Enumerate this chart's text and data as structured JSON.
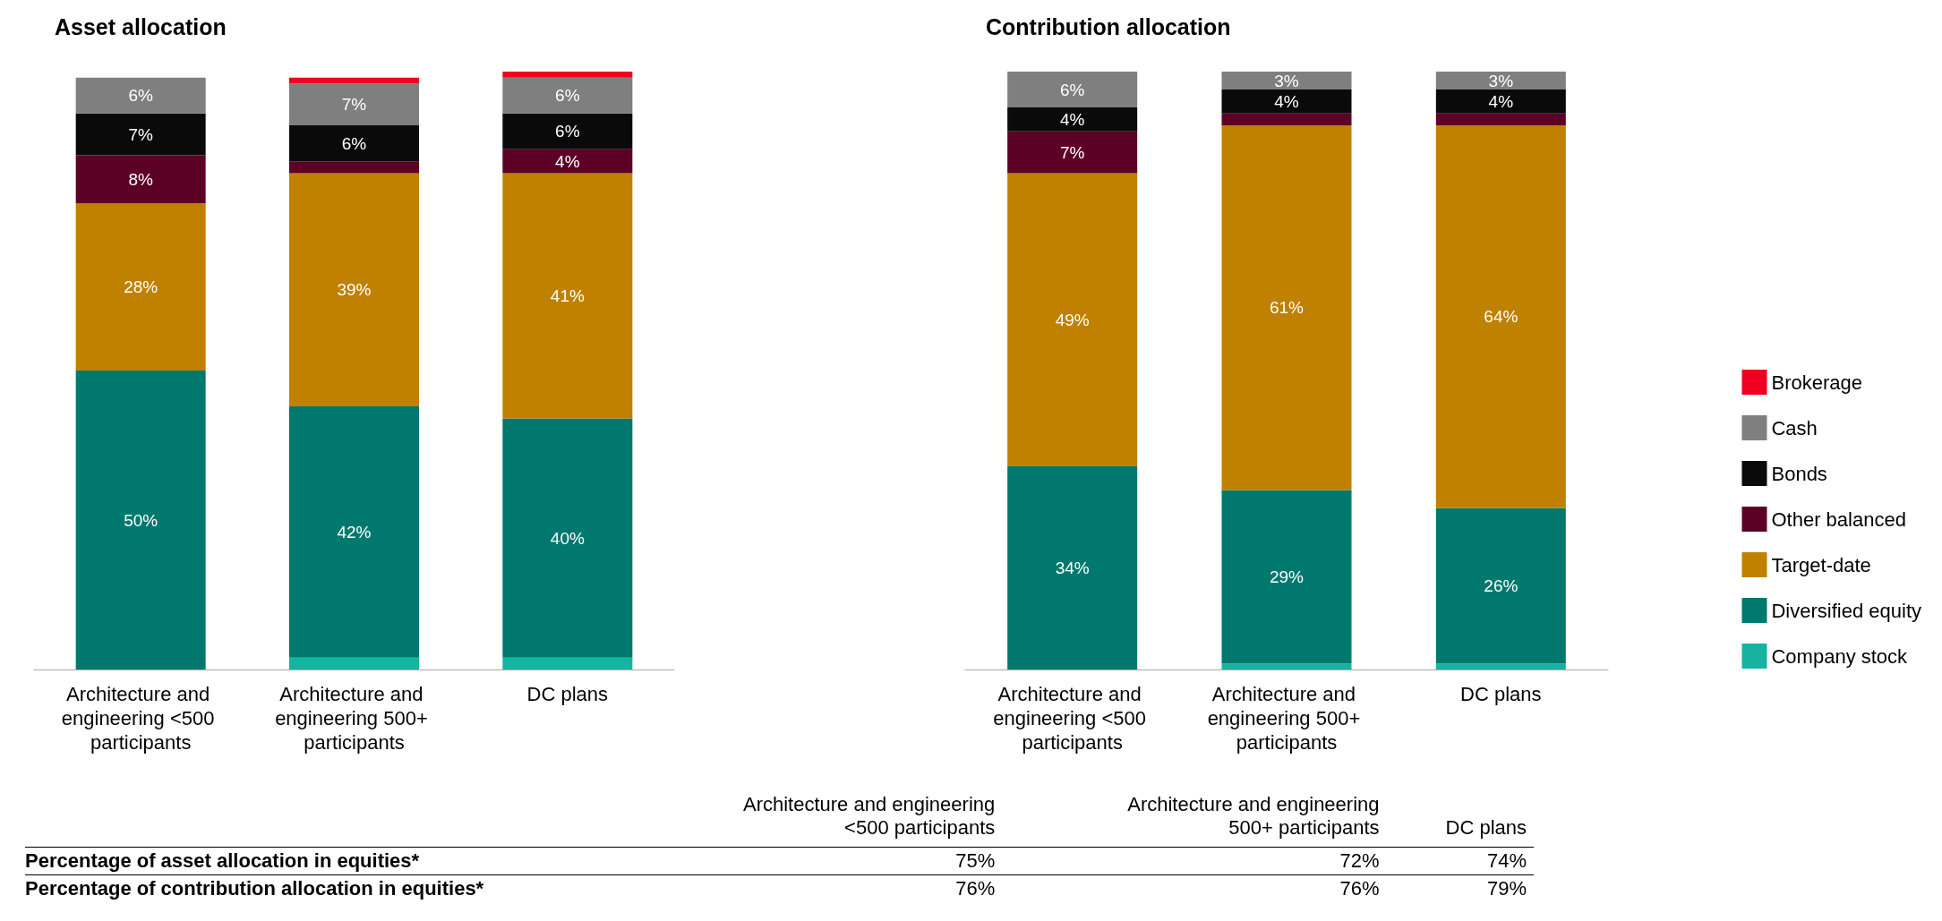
{
  "chart_data": [
    {
      "type": "bar",
      "title": "Asset allocation",
      "stacked": true,
      "categories": [
        "Architecture and engineering <500 participants",
        "Architecture and engineering 500+ participants",
        "DC plans"
      ],
      "series": [
        {
          "color": "#16b3a0",
          "values": [
            0,
            2,
            2
          ],
          "value_labels": [
            null,
            null,
            null
          ]
        },
        {
          "color": "#00786e",
          "values": [
            50,
            42,
            40
          ],
          "value_labels": [
            "50%",
            "42%",
            "40%"
          ]
        },
        {
          "color": "#c08000",
          "values": [
            28,
            39,
            41
          ],
          "value_labels": [
            "28%",
            "39%",
            "41%"
          ]
        },
        {
          "color": "#5c0026",
          "values": [
            8,
            2,
            4
          ],
          "value_labels": [
            "8%",
            null,
            "4%"
          ]
        },
        {
          "color": "#0a0a0a",
          "values": [
            7,
            6,
            6
          ],
          "value_labels": [
            "7%",
            "6%",
            "6%"
          ]
        },
        {
          "color": "#7f7f7f",
          "values": [
            6,
            7,
            6
          ],
          "value_labels": [
            "6%",
            "7%",
            "6%"
          ]
        },
        {
          "color": "#f00020",
          "values": [
            0,
            1,
            1
          ],
          "value_labels": [
            null,
            null,
            null
          ]
        }
      ]
    },
    {
      "type": "bar",
      "title": "Contribution allocation",
      "stacked": true,
      "legend": "right",
      "categories": [
        "Architecture and engineering <500 participants",
        "Architecture and engineering 500+ participants",
        "DC plans"
      ],
      "series": [
        {
          "name": "Company stock",
          "color": "#16b3a0",
          "values": [
            0,
            1,
            1
          ],
          "value_labels": [
            null,
            null,
            null
          ]
        },
        {
          "name": "Diversified equity",
          "color": "#00786e",
          "values": [
            34,
            29,
            26
          ],
          "value_labels": [
            "34%",
            "29%",
            "26%"
          ]
        },
        {
          "name": "Target-date",
          "color": "#c08000",
          "values": [
            49,
            61,
            64
          ],
          "value_labels": [
            "49%",
            "61%",
            "64%"
          ]
        },
        {
          "name": "Other balanced",
          "color": "#5c0026",
          "values": [
            7,
            2,
            2
          ],
          "value_labels": [
            "7%",
            null,
            null
          ]
        },
        {
          "name": "Bonds",
          "color": "#0a0a0a",
          "values": [
            4,
            4,
            4
          ],
          "value_labels": [
            "4%",
            "4%",
            "4%"
          ]
        },
        {
          "name": "Cash",
          "color": "#7f7f7f",
          "values": [
            6,
            3,
            3
          ],
          "value_labels": [
            "6%",
            "3%",
            "3%"
          ]
        },
        {
          "name": "Brokerage",
          "color": "#f00020",
          "values": [
            0,
            0,
            0
          ],
          "value_labels": [
            null,
            null,
            null
          ]
        }
      ]
    },
    {
      "type": "other",
      "categories": [
        "Architecture and engineering <500 participants",
        "Architecture and engineering 500+ participants",
        "DC plans"
      ],
      "series": [
        {
          "name": "Percentage of asset allocation in equities*",
          "values": [
            75,
            72,
            74
          ],
          "value_labels": [
            "75%",
            "72%",
            "74%"
          ]
        },
        {
          "name": "Percentage of contribution allocation in equities*",
          "values": [
            76,
            76,
            79
          ],
          "value_labels": [
            "76%",
            "76%",
            "79%"
          ]
        }
      ]
    }
  ]
}
